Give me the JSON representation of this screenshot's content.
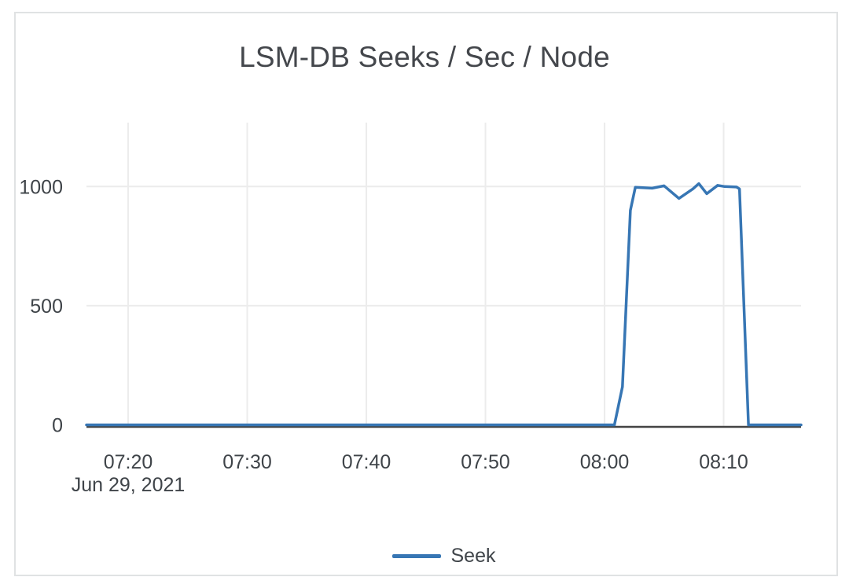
{
  "chart_data": {
    "type": "line",
    "title": "LSM-DB Seeks / Sec / Node",
    "xlabel": "",
    "ylabel": "",
    "x_axis_date": "Jun 29, 2021",
    "x_tick_labels": [
      "07:20",
      "07:30",
      "07:40",
      "07:50",
      "08:00",
      "08:10"
    ],
    "x_range": [
      "07:16:30",
      "08:16:30"
    ],
    "y_ticks": [
      0,
      500,
      1000
    ],
    "y_range": [
      0,
      1268
    ],
    "grid": true,
    "legend_position": "bottom-center",
    "series": [
      {
        "name": "Seek",
        "color": "#3776b4",
        "points": [
          [
            "07:16:30",
            0
          ],
          [
            "08:00:50",
            0
          ],
          [
            "08:01:30",
            160
          ],
          [
            "08:02:10",
            900
          ],
          [
            "08:02:35",
            997
          ],
          [
            "08:04:00",
            993
          ],
          [
            "08:05:00",
            1003
          ],
          [
            "08:06:15",
            950
          ],
          [
            "08:07:25",
            990
          ],
          [
            "08:07:55",
            1012
          ],
          [
            "08:08:35",
            970
          ],
          [
            "08:09:30",
            1005
          ],
          [
            "08:10:05",
            1000
          ],
          [
            "08:11:05",
            998
          ],
          [
            "08:11:20",
            990
          ],
          [
            "08:12:05",
            0
          ],
          [
            "08:16:30",
            0
          ]
        ]
      }
    ]
  },
  "legend": {
    "entries": [
      {
        "label": "Seek",
        "color": "#3776b4"
      }
    ]
  },
  "colors": {
    "series_blue": "#3776b4",
    "grid": "#ececec",
    "zero_line": "#444444",
    "text": "#3f4449",
    "title_text": "#44474c",
    "card_border": "#e0e2e3",
    "background": "#ffffff"
  }
}
